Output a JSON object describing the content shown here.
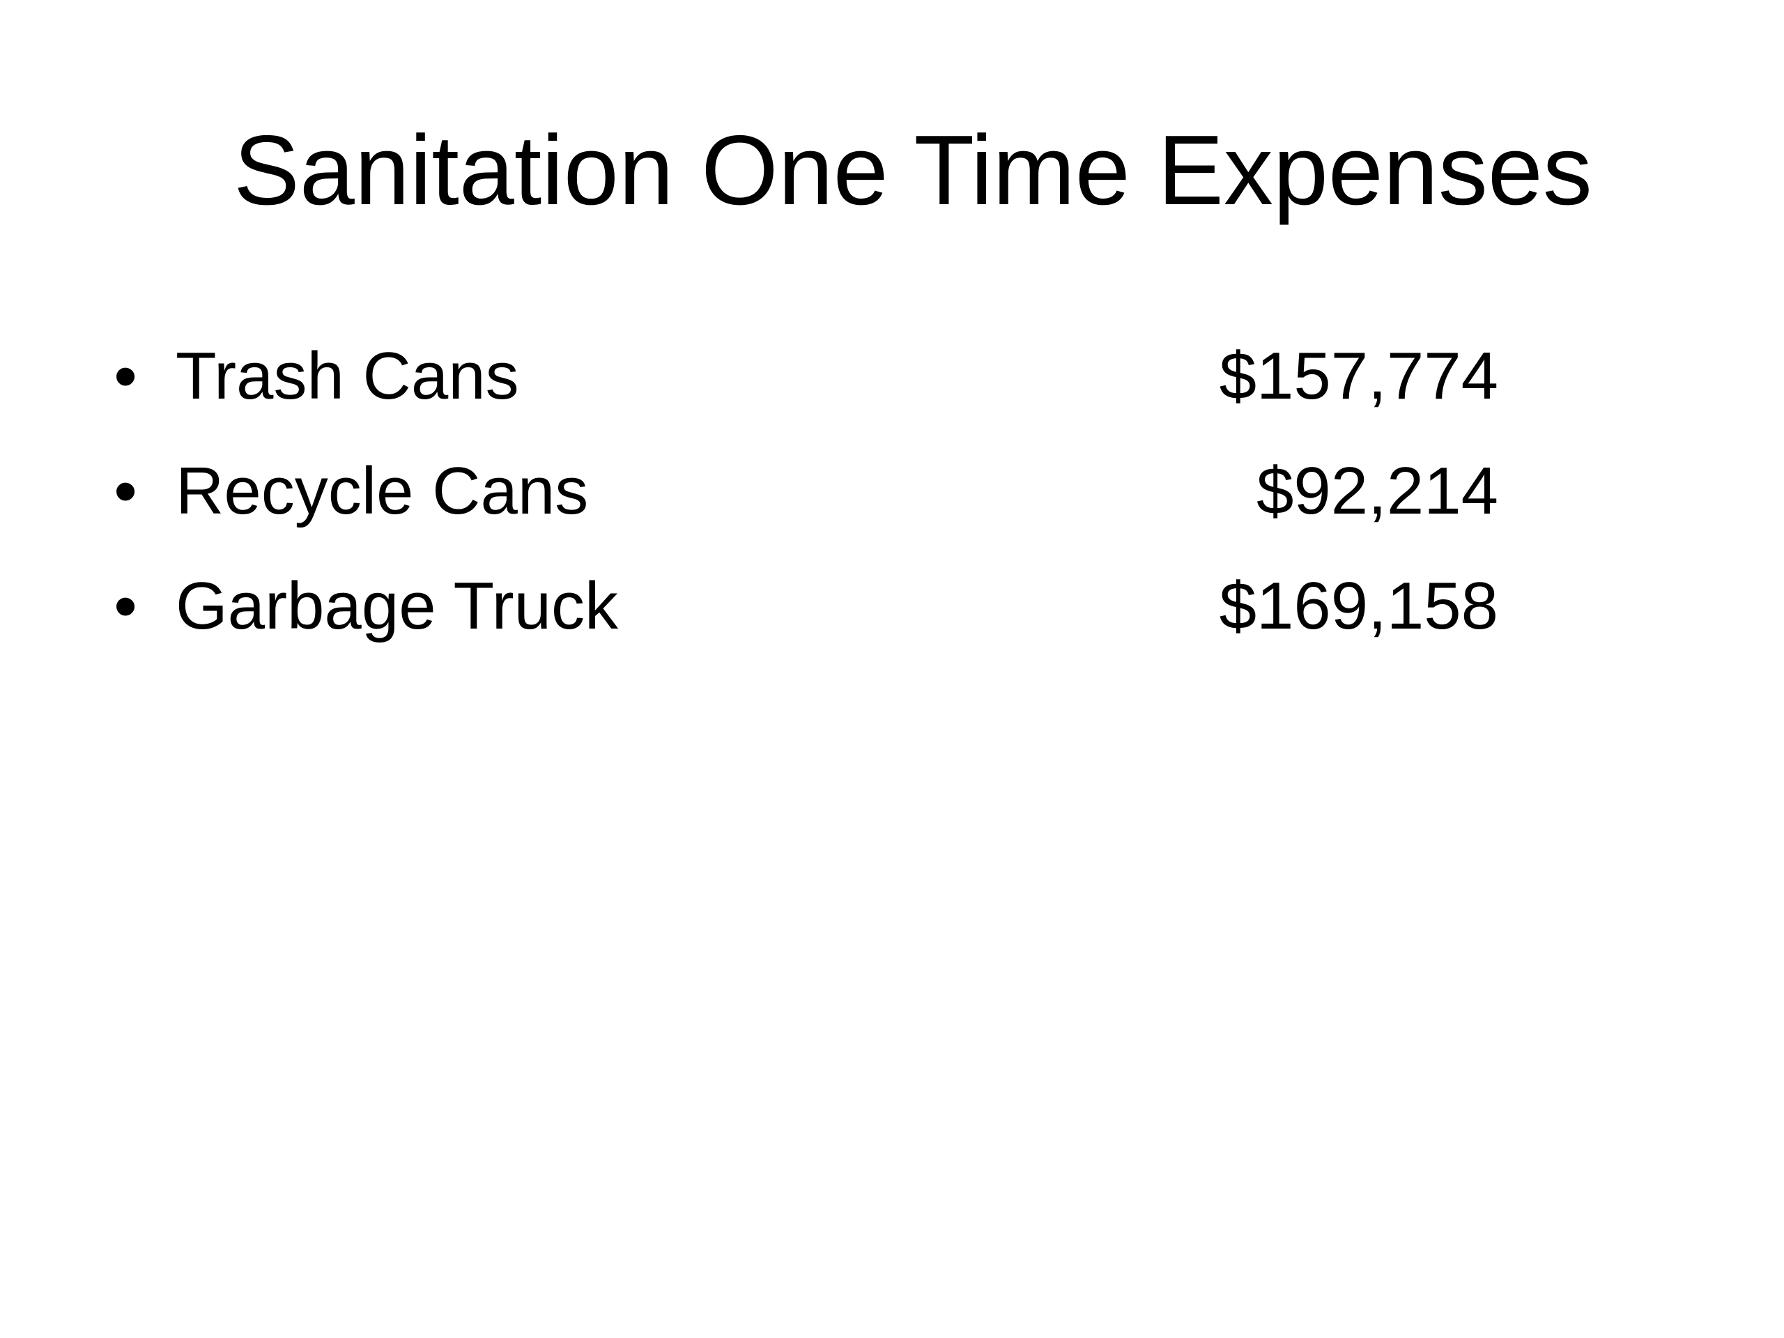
{
  "title": "Sanitation One Time Expenses",
  "items": [
    {
      "label": "Trash Cans",
      "amount": "$157,774"
    },
    {
      "label": "Recycle Cans",
      "amount": "$92,214"
    },
    {
      "label": "Garbage Truck",
      "amount": "$169,158"
    }
  ]
}
